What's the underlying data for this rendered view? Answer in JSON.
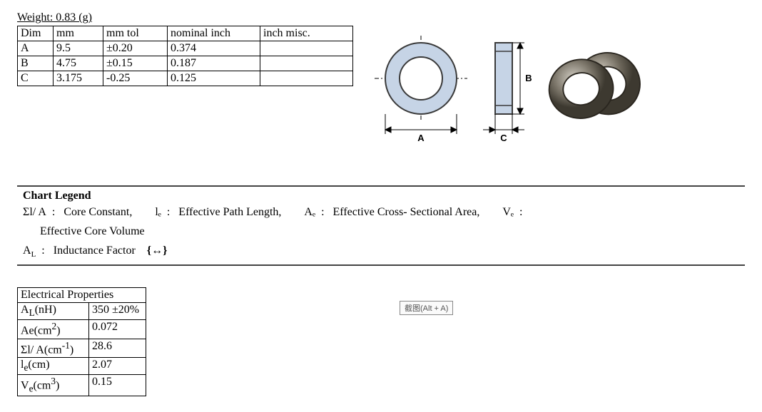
{
  "weight_label": "Weight: 0.83 (g)",
  "dim_table": {
    "headers": [
      "Dim",
      "mm",
      "mm tol",
      "nominal inch",
      "inch misc."
    ],
    "col_widths": [
      "50px",
      "70px",
      "90px",
      "130px",
      "130px"
    ],
    "rows": [
      [
        "A",
        "9.5",
        "±0.20",
        "0.374",
        ""
      ],
      [
        "B",
        "4.75",
        "±0.15",
        "0.187",
        ""
      ],
      [
        "C",
        "3.175",
        "-0.25",
        "0.125",
        ""
      ]
    ]
  },
  "diagram": {
    "ring_outer_fill": "#c6d4e6",
    "ring_stroke": "#3a3a3a",
    "dim_A": "A",
    "dim_B": "B",
    "dim_C": "C",
    "photo_gradient_light": "#b8b4aa",
    "photo_gradient_dark": "#4a463e"
  },
  "legend": {
    "title": "Chart Legend",
    "items": [
      {
        "sym": "Σl/ A",
        "desc": "Core Constant,"
      },
      {
        "sym": "lₑ",
        "desc": "Effective Path Length,"
      },
      {
        "sym": "Aₑ",
        "desc": "Effective Cross- Sectional Area,"
      },
      {
        "sym": "Vₑ",
        "desc": ""
      }
    ],
    "cont1": "Effective Core Volume",
    "line2_sym": "A",
    "line2_sub": "L",
    "line2_desc": "Inductance Factor"
  },
  "elec_table": {
    "title": "Electrical Properties",
    "rows": [
      {
        "label_html": "A<sub>L</sub>(nH)",
        "value": "350 ±20%"
      },
      {
        "label_html": "Ae(cm<sup>2</sup>)",
        "value": "0.072"
      },
      {
        "label_html": "Σl/ A(cm<sup>-1</sup>)",
        "value": "28.6"
      },
      {
        "label_html": "l<sub>e</sub>(cm)",
        "value": "2.07"
      },
      {
        "label_html": "V<sub>e</sub>(cm<sup>3</sup>)",
        "value": "0.15"
      }
    ],
    "col_widths": [
      "100px",
      "80px"
    ]
  },
  "tooltip_text": "截图(Alt + A)"
}
